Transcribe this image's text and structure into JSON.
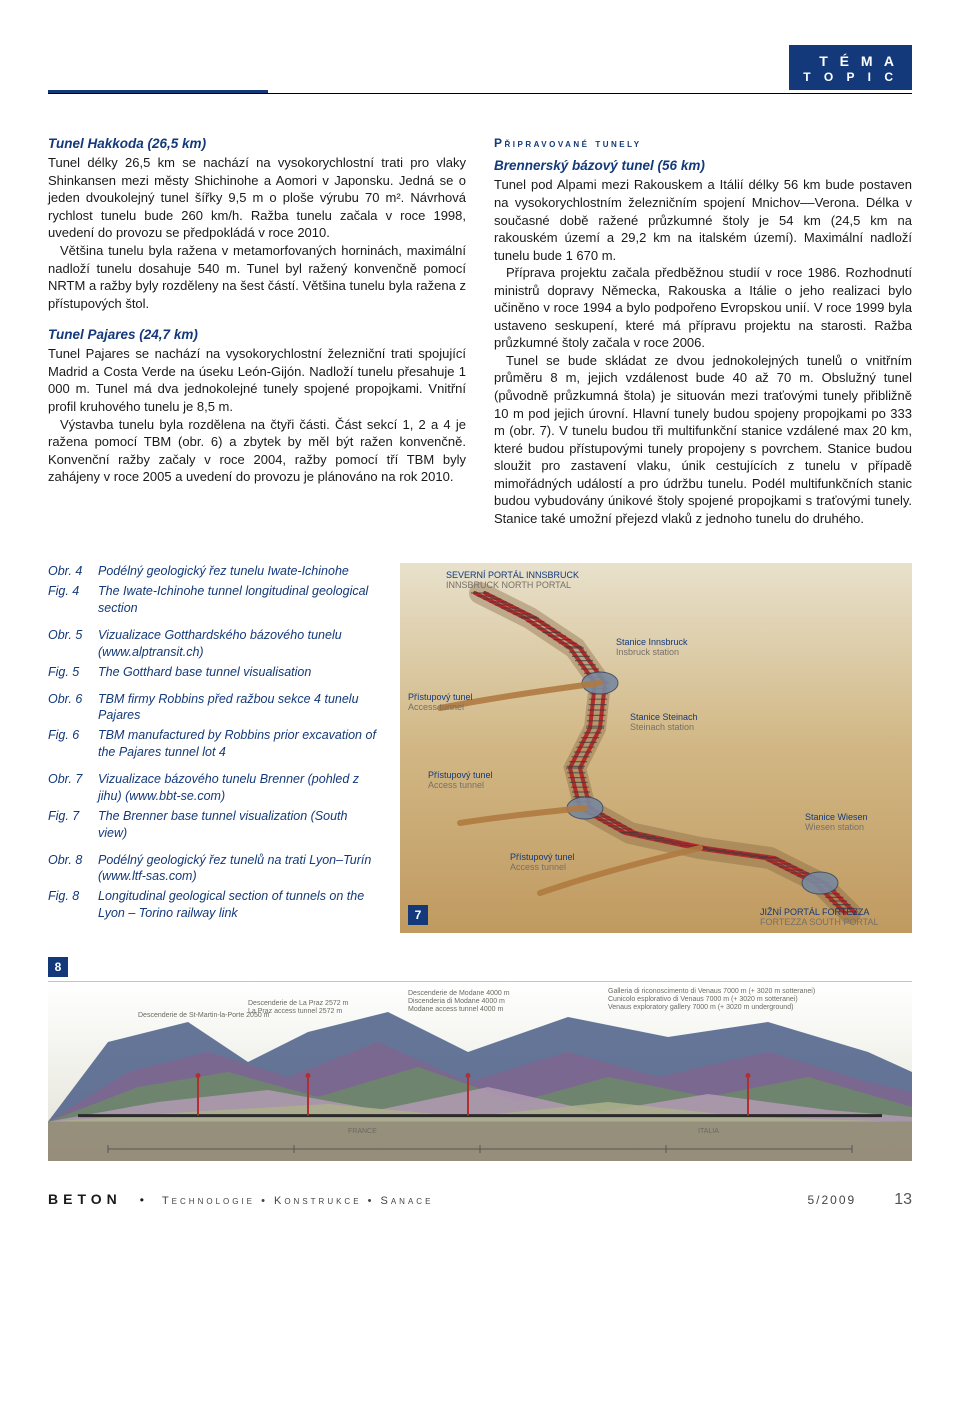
{
  "header": {
    "line1": "T É M A",
    "line2": "T O P I C"
  },
  "col_left": {
    "s1_title": "Tunel Hakkoda (26,5 km)",
    "s1_body": "Tunel délky 26,5 km se nachází na vysokorychlostní trati pro vlaky Shinkansen mezi městy Shichinohe a Aomori v Japonsku. Jedná se o jeden dvoukolejný tunel šířky 9,5 m o ploše výrubu 70 m². Návrhová rychlost tunelu bude 260 km/h. Ražba tunelu začala v roce 1998, uvedení do provozu se předpokládá v roce 2010.",
    "s1_body2": "Většina tunelu byla ražena v metamorfovaných horninách, maximální nadloží tunelu dosahuje 540 m. Tunel byl ražený konvenčně pomocí NRTM a ražby byly rozděleny na šest částí. Většina tunelu byla ražena z přístupových štol.",
    "s2_title": "Tunel Pajares (24,7 km)",
    "s2_body": "Tunel Pajares se nachází na vysokorychlostní železniční trati spojující Madrid a Costa Verde na úseku León-Gijón. Nadloží tunelu přesahuje 1 000 m. Tunel má dva jednokolejné tunely spojené propojkami. Vnitřní profil kruhového tunelu je 8,5 m.",
    "s2_body2": "Výstavba tunelu byla rozdělena na čtyři části. Část sekcí 1, 2 a 4 je ražena pomocí TBM (obr. 6) a zbytek by měl být ražen konvenčně. Konvenční ražby začaly v roce 2004, ražby pomocí tří TBM byly zahájeny v roce 2005 a uvedení do provozu je plánováno na rok 2010."
  },
  "col_right": {
    "subhead": "Připravované tunely",
    "s1_title": "Brennerský bázový tunel (56 km)",
    "s1_body": "Tunel pod Alpami mezi Rakouskem a Itálií délky 56 km bude postaven na vysokorychlostním železničním spojení Mnichov––Verona. Délka v současné době ražené průzkumné štoly je 54 km (24,5 km na rakouském území a 29,2 km na italském území). Maximální nadloží tunelu bude 1 670 m.",
    "s1_body2": "Příprava projektu začala předběžnou studií v roce 1986. Rozhodnutí ministrů dopravy Německa, Rakouska a Itálie o jeho realizaci bylo učiněno v roce 1994 a bylo podpořeno Evropskou unií. V roce 1999 byla ustaveno seskupení, které má přípravu projektu na starosti. Ražba průzkumné štoly začala v roce 2006.",
    "s1_body3": "Tunel se bude skládat ze dvou jednokolejných tunelů o vnitřním průměru 8 m, jejich vzdálenost bude 40 až 70 m. Obslužný tunel (původně průzkumná štola) je situován mezi traťovými tunely přibližně 10 m pod jejich úrovní. Hlavní tunely budou spojeny propojkami po 333 m (obr. 7). V tunelu budou tři multifunkční stanice vzdálené max 20 km, které budou přístupovými tunely propojeny s povrchem. Stanice budou sloužit pro zastavení vlaku, únik cestujících z tunelu v případě mimořádných událostí a pro údržbu tunelu. Podél multifunkčních stanic budou vybudovány únikové štoly spojené propojkami s traťovými tunely. Stanice také umožní přejezd vlaků z jednoho tunelu do druhého."
  },
  "captions": [
    {
      "group": [
        {
          "label": "Obr. 4",
          "text": "Podélný geologický řez tunelu Iwate-Ichinohe"
        },
        {
          "label": "Fig. 4",
          "text": "The Iwate-Ichinohe tunnel longitudinal geological section"
        }
      ]
    },
    {
      "group": [
        {
          "label": "Obr. 5",
          "text": "Vizualizace Gotthardského bázového tunelu (www.alptransit.ch)"
        },
        {
          "label": "Fig. 5",
          "text": "The Gotthard base tunnel visualisation"
        }
      ]
    },
    {
      "group": [
        {
          "label": "Obr. 6",
          "text": "TBM firmy Robbins před ražbou sekce 4 tunelu Pajares"
        },
        {
          "label": "Fig. 6",
          "text": "TBM manufactured by Robbins prior excavation of the Pajares tunnel lot 4"
        }
      ]
    },
    {
      "group": [
        {
          "label": "Obr. 7",
          "text": "Vizualizace bázového tunelu Brenner (pohled z jihu) (www.bbt-se.com)"
        },
        {
          "label": "Fig. 7",
          "text": "The Brenner base tunnel visualization (South view)"
        }
      ]
    },
    {
      "group": [
        {
          "label": "Obr. 8",
          "text": "Podélný geologický řez tunelů na trati Lyon–Turín (www.ltf-sas.com)"
        },
        {
          "label": "Fig. 8",
          "text": "Longitudinal geological section of tunnels on the Lyon – Torino railway link"
        }
      ]
    }
  ],
  "fig7": {
    "number": "7",
    "portal_n_cz": "SEVERNÍ PORTÁL INNSBRUCK",
    "portal_n_en": "INNSBRUCK NORTH PORTAL",
    "st1_cz": "Stanice Innsbruck",
    "st1_en": "Insbruck station",
    "st2_cz": "Stanice Steinach",
    "st2_en": "Steinach station",
    "st3_cz": "Stanice Wiesen",
    "st3_en": "Wiesen station",
    "acc_cz": "Přístupový tunel",
    "acc_en": "Access tunnel",
    "portal_s_cz": "JIŽNÍ PORTÁL FORTEZZA",
    "portal_s_en": "FORTEZZA SOUTH PORTAL",
    "colors": {
      "rail": "#b22a2a",
      "ties": "#3c3c3c",
      "station": "#7a8aa0",
      "access": "#af7a40",
      "shadow": "#7a5a36"
    }
  },
  "fig8": {
    "number": "8",
    "france": "FRANCE",
    "italia": "ITALIA",
    "labels": [
      "Descenderie de St-Martin-la-Porte  2050 m",
      "Descenderie de La Praz  2572 m",
      "La Praz access tunnel 2572 m",
      "Descenderie de Modane  4000 m",
      "Discenderia di Modane  4000 m",
      "Modane access tunnel 4000 m",
      "Galleria di riconoscimento di Venaus 7000 m (+ 3020 m sotteranei)",
      "Cunicolo esplorativo di Venaus 7000 m (+ 3020 m sotteranei)",
      "Venaus exploratory gallery 7000 m (+ 3020 m underground)"
    ],
    "colors": {
      "peak1": "#adb08c",
      "peak2": "#6d8a69",
      "peak3": "#4a5e87",
      "peak4": "#b19ab3",
      "peak5": "#7f668f",
      "ground": "#8d8570",
      "tunnel": "#2a2a2a",
      "marker": "#b03030"
    }
  },
  "footer": {
    "brand": "BETON",
    "tagline": "Technologie • Konstrukce • Sanace",
    "issue": "5/2009",
    "page": "13"
  }
}
